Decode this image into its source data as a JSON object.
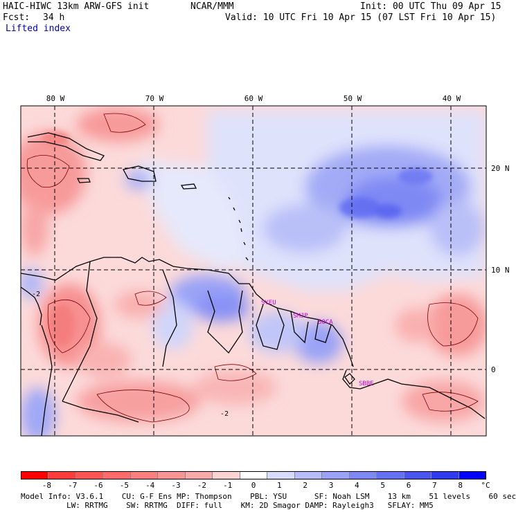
{
  "header": {
    "model": "HAIC-HIWC 13km ARW-GFS init",
    "org": "NCAR/MMM",
    "init": "Init: 00 UTC Thu 09 Apr 15",
    "fcst_label": "Fcst:",
    "fcst_value": "34 h",
    "valid": "Valid: 10 UTC Fri 10 Apr 15 (07 LST Fri 10 Apr 15)",
    "field": "Lifted index"
  },
  "map": {
    "lon_labels": [
      "80 W",
      "70 W",
      "60 W",
      "50 W",
      "40 W"
    ],
    "lat_labels": [
      "20 N",
      "10 N",
      "0"
    ],
    "contour_labels": [
      "-2",
      "-2"
    ],
    "stations": [
      "SYEU",
      "SMJP",
      "SOCA",
      "SBBE"
    ],
    "station_color": "#cc00cc"
  },
  "colorbar": {
    "ticks": [
      "-8",
      "-7",
      "-6",
      "-5",
      "-4",
      "-3",
      "-2",
      "-1",
      "0",
      "1",
      "2",
      "3",
      "4",
      "5",
      "6",
      "7",
      "8"
    ],
    "unit": "°C",
    "colors": [
      "#ff0000",
      "#ff3c3c",
      "#ff5555",
      "#ff6b6b",
      "#fb7f7f",
      "#f99494",
      "#f8aaaa",
      "#fcd2d2",
      "#ffffff",
      "#d8dcfc",
      "#b6bdf9",
      "#9aa3f7",
      "#7f89f4",
      "#6570f2",
      "#4a55ef",
      "#2f3bec",
      "#0000ff"
    ]
  },
  "footer": {
    "line1": "Model Info: V3.6.1    CU: G-F Ens MP: Thompson    PBL: YSU      SF: Noah LSM    13 km    51 levels    60 sec",
    "line2": "LW: RRTMG    SW: RRTMG  DIFF: full    KM: 2D Smagor DAMP: Rayleigh3   SFLAY: MM5"
  }
}
